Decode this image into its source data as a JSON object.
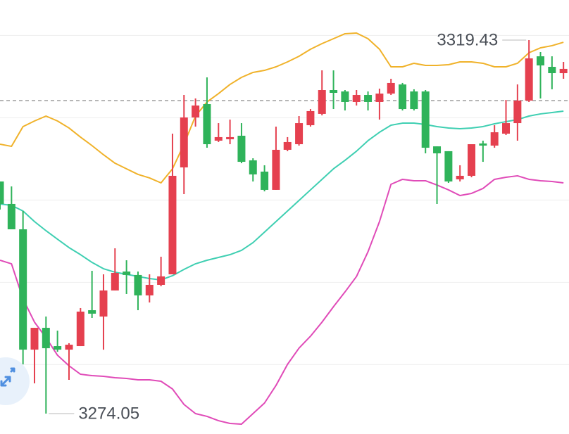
{
  "chart_data": {
    "type": "candlestick",
    "ylim": [
      3271.57,
      3324.3
    ],
    "grid_lines": [
      3280,
      3290,
      3300,
      3310,
      3320
    ],
    "reference_line": 3312.08,
    "colors": {
      "up": "#e5404f",
      "down": "#2fb35a"
    },
    "candles": {
      "open": [
        3302.25,
        3299.52,
        3296.44,
        3281.82,
        3284.47,
        3282.25,
        3281.82,
        3282.25,
        3286.61,
        3285.84,
        3289.01,
        3291.31,
        3290.89,
        3288.41,
        3289.69,
        3290.97,
        3303.96,
        3310.03,
        3311.65,
        3307.21,
        3307.38,
        3307.81,
        3304.82,
        3303.45,
        3301.23,
        3306.1,
        3306.78,
        3309.09,
        3310.46,
        3313.36,
        3313.19,
        3311.91,
        3312.76,
        3311.91,
        3312.93,
        3314.04,
        3313.19,
        3313.19,
        3306.52,
        3305.93,
        3302.51,
        3302.94,
        3306.87,
        3306.61,
        3308.06,
        3309.34,
        3312.08,
        3317.46,
        3316.18,
        3315.41
      ],
      "high": [
        3302.25,
        3301.65,
        3298.66,
        3284.47,
        3285.84,
        3284.13,
        3282.6,
        3286.87,
        3291.4,
        3290.97,
        3294.13,
        3292.68,
        3291.31,
        3290.97,
        3293.11,
        3308.06,
        3312.76,
        3312.34,
        3314.9,
        3309.34,
        3309.77,
        3309.34,
        3305.07,
        3304.22,
        3308.92,
        3307.64,
        3310.2,
        3311.05,
        3315.75,
        3315.75,
        3313.36,
        3313.36,
        3313.19,
        3313.53,
        3314.73,
        3314.22,
        3313.45,
        3313.36,
        3306.52,
        3305.93,
        3304.22,
        3306.78,
        3307.21,
        3309.09,
        3312.16,
        3314.04,
        3319.43,
        3317.98,
        3317.46,
        3316.78
      ],
      "low": [
        3298.84,
        3296.44,
        3280.03,
        3277.72,
        3274.05,
        3281.56,
        3278.15,
        3282.25,
        3285.67,
        3281.82,
        3289.01,
        3288.58,
        3286.61,
        3287.55,
        3289.52,
        3290.97,
        3300.71,
        3308.92,
        3306.35,
        3307.04,
        3306.78,
        3304.47,
        3302.25,
        3301.05,
        3301.23,
        3305.93,
        3306.61,
        3308.92,
        3310.28,
        3311.05,
        3310.88,
        3311.48,
        3310.88,
        3309.77,
        3312.76,
        3310.88,
        3310.88,
        3305.67,
        3299.52,
        3302.08,
        3302.25,
        3302.76,
        3304.64,
        3306.35,
        3307.89,
        3307.21,
        3311.91,
        3312.34,
        3313.45,
        3314.73
      ],
      "close": [
        3299.52,
        3296.44,
        3281.82,
        3284.47,
        3281.99,
        3281.82,
        3282.42,
        3286.44,
        3286.19,
        3289.01,
        3291.14,
        3290.89,
        3288.41,
        3289.69,
        3290.72,
        3302.94,
        3310.03,
        3311.48,
        3306.78,
        3307.64,
        3307.64,
        3304.64,
        3303.11,
        3301.23,
        3306.1,
        3307.04,
        3309.34,
        3310.8,
        3313.36,
        3313.02,
        3311.91,
        3312.76,
        3311.91,
        3312.93,
        3314.22,
        3311.05,
        3311.05,
        3306.35,
        3305.67,
        3302.25,
        3302.94,
        3306.78,
        3306.61,
        3308.23,
        3309.34,
        3312.08,
        3317.21,
        3316.35,
        3315.41,
        3315.93
      ]
    },
    "bands": [
      {
        "color": "#f0b22a",
        "values": [
          3306.78,
          3306.52,
          3308.92,
          3309.6,
          3310.2,
          3309.6,
          3308.75,
          3307.64,
          3306.61,
          3305.5,
          3304.47,
          3303.79,
          3303.11,
          3302.68,
          3302.08,
          3303.79,
          3306.78,
          3310.2,
          3311.91,
          3312.93,
          3314.04,
          3314.9,
          3315.5,
          3315.75,
          3316.18,
          3316.78,
          3317.46,
          3318.32,
          3319.0,
          3319.6,
          3320.2,
          3320.28,
          3319.6,
          3318.32,
          3316.18,
          3316.18,
          3316.61,
          3316.35,
          3316.35,
          3316.44,
          3316.78,
          3316.78,
          3316.61,
          3316.18,
          3316.18,
          3316.61,
          3317.89,
          3318.49,
          3318.75,
          3319.17
        ]
      },
      {
        "color": "#3fcfb2",
        "values": [
          3299.52,
          3299.35,
          3298.66,
          3297.38,
          3296.27,
          3295.24,
          3294.22,
          3293.36,
          3292.42,
          3291.65,
          3291.23,
          3290.97,
          3290.71,
          3290.46,
          3290.29,
          3290.8,
          3291.57,
          3292.25,
          3292.68,
          3293.02,
          3293.36,
          3293.88,
          3294.82,
          3296.1,
          3297.38,
          3298.66,
          3299.94,
          3301.23,
          3302.51,
          3303.79,
          3304.82,
          3305.93,
          3307.21,
          3308.23,
          3309.09,
          3309.34,
          3309.34,
          3309.17,
          3308.92,
          3308.75,
          3308.66,
          3308.75,
          3308.92,
          3309.26,
          3309.52,
          3309.77,
          3310.2,
          3310.46,
          3310.63,
          3310.8
        ]
      },
      {
        "color": "#e04bb8",
        "values": [
          3292.68,
          3292.25,
          3287.98,
          3285.16,
          3283.28,
          3281.14,
          3279.86,
          3278.83,
          3278.66,
          3278.58,
          3278.41,
          3278.32,
          3278.15,
          3278.15,
          3277.98,
          3277.04,
          3275.16,
          3274.05,
          3273.71,
          3273.19,
          3272.85,
          3272.77,
          3274.05,
          3275.33,
          3277.47,
          3280.03,
          3282.0,
          3283.45,
          3285.16,
          3287.04,
          3288.83,
          3290.71,
          3293.71,
          3297.38,
          3301.91,
          3302.51,
          3302.34,
          3302.34,
          3301.82,
          3301.23,
          3300.54,
          3300.8,
          3301.4,
          3302.51,
          3302.76,
          3302.94,
          3302.51,
          3302.34,
          3302.25,
          3302.08
        ]
      }
    ],
    "annotations": [
      3319.43,
      3274.05
    ]
  }
}
